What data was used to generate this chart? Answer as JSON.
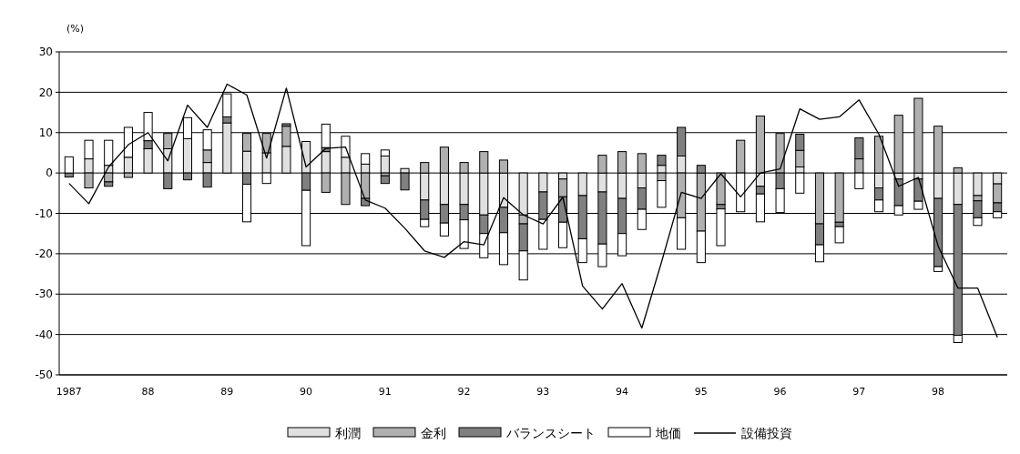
{
  "chart_data": {
    "type": "bar",
    "stacked": true,
    "ylabel": "(%)",
    "categories": [
      "1987",
      null,
      null,
      null,
      "88",
      null,
      null,
      null,
      "89",
      null,
      null,
      null,
      "90",
      null,
      null,
      null,
      "91",
      null,
      null,
      null,
      "92",
      null,
      null,
      null,
      "93",
      null,
      null,
      null,
      "94",
      null,
      null,
      null,
      "95",
      null,
      null,
      null,
      "96",
      null,
      null,
      null,
      "97",
      null,
      null,
      null,
      "98",
      null,
      null,
      null
    ],
    "ylim": [
      -50,
      30
    ],
    "yticks": [
      -50,
      -40,
      -30,
      -20,
      -10,
      0,
      10,
      20,
      30
    ],
    "grid": "y",
    "legend": "bottom",
    "series": [
      {
        "name": "利潤",
        "type": "bar",
        "color": "#e0e0e0",
        "values": [
          0,
          3.5,
          1.9,
          3.9,
          6,
          6,
          8.5,
          2.6,
          12.4,
          5.4,
          5,
          6.6,
          7.8,
          5.3,
          3.9,
          2.2,
          4.2,
          1.1,
          -6.7,
          -7.8,
          -7.8,
          -10.4,
          -8.5,
          -10.4,
          -4.7,
          -1.5,
          -5.6,
          -4.7,
          -6.3,
          -3.7,
          1.9,
          4.2,
          0,
          0,
          0,
          -3.3,
          0,
          1.5,
          0,
          0,
          0,
          -3.7,
          -1.5,
          -1.5,
          -6.3,
          -7.8,
          -5.6,
          -2.7
        ]
      },
      {
        "name": "金利",
        "type": "bar",
        "color": "#b0b0b0",
        "values": [
          0,
          -3.7,
          -2.2,
          -1.1,
          0,
          3.8,
          0,
          3.1,
          0,
          4.4,
          4.8,
          5,
          0,
          -4.8,
          -7.8,
          -6.3,
          -0.7,
          0,
          2.6,
          6.4,
          2.6,
          5.3,
          3.2,
          -2.2,
          0,
          -4.4,
          0,
          4.4,
          5.3,
          4.8,
          -1.9,
          -11.1,
          -14.4,
          -7.8,
          8.1,
          14.1,
          9.8,
          4.1,
          -12.6,
          -12.2,
          3.5,
          9.1,
          14.3,
          18.5,
          11.6,
          1.3,
          -1.3,
          -4.7
        ]
      },
      {
        "name": "バランスシート",
        "type": "bar",
        "color": "#808080",
        "values": [
          -1,
          0,
          -1.1,
          0,
          2,
          -3.9,
          -1.7,
          -3.5,
          1.5,
          -2.8,
          0,
          0.6,
          -4.3,
          1,
          0,
          -1.8,
          -1.9,
          -4.2,
          -4.8,
          -4.6,
          -3.8,
          -4.6,
          -6.3,
          -6.7,
          -6.8,
          -6.3,
          -10.7,
          -12.9,
          -8.7,
          -5.3,
          2.5,
          7.1,
          1.9,
          -1.1,
          0,
          -1.9,
          -3.9,
          4,
          -5.2,
          -1.1,
          5.2,
          -3,
          -6.6,
          -5.5,
          -16.9,
          -32.4,
          -4.2,
          -2.2
        ]
      },
      {
        "name": "地価",
        "type": "bar",
        "color": "#ffffff",
        "values": [
          4,
          4.6,
          6.2,
          7.4,
          7,
          0,
          5.2,
          5,
          5.7,
          -9.3,
          -2.6,
          0,
          -13.7,
          5.8,
          5.2,
          2.6,
          1.5,
          0,
          -1.8,
          -3.2,
          -7.1,
          -6,
          -7.9,
          -7.2,
          -7.4,
          -6.3,
          -5.9,
          -5.6,
          -5.5,
          -5,
          -6.6,
          -7.8,
          -7.8,
          -9.1,
          -9.6,
          -6.9,
          -5.9,
          -5,
          -4.2,
          -4,
          -3.9,
          -2.9,
          -2.3,
          -2,
          -1.2,
          -1.8,
          -1.9,
          -1.5
        ]
      },
      {
        "name": "設備投資",
        "type": "line",
        "color": "#000000",
        "values": [
          -2.6,
          -7.6,
          1.5,
          7,
          10,
          3,
          16.8,
          11.3,
          22,
          19.3,
          3.7,
          21,
          1.5,
          6.1,
          6.4,
          -6.7,
          -8.7,
          -13.7,
          -19.3,
          -20.9,
          -17,
          -17.8,
          -6.1,
          -10.4,
          -12.6,
          -6,
          -28,
          -33.7,
          -27.4,
          -38.4,
          -22,
          -4.8,
          -6.3,
          -0.2,
          -5.9,
          0,
          1,
          15.9,
          13.3,
          13.9,
          18.1,
          9.6,
          -3.3,
          -1.1,
          -18.1,
          -28.5,
          -28.5,
          -40.7
        ]
      }
    ]
  }
}
